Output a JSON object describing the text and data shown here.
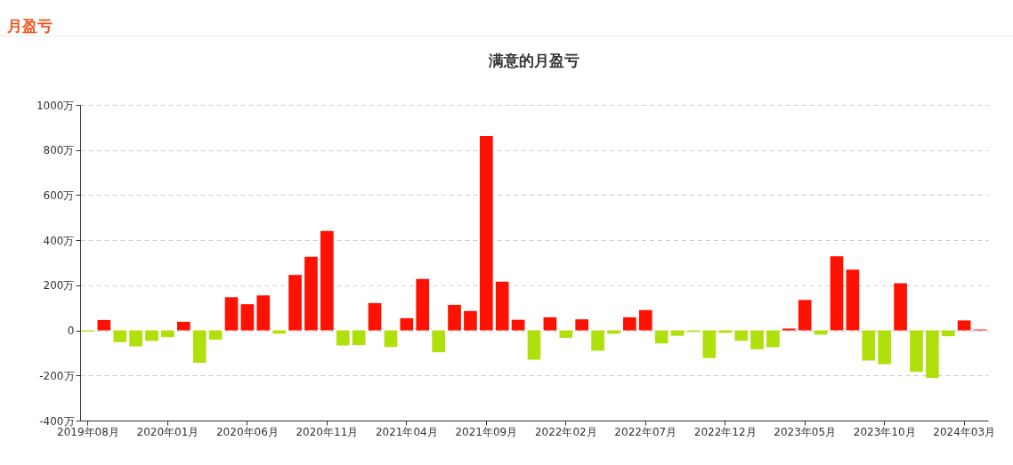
{
  "chart_data": {
    "type": "bar",
    "title": "满意的月盈亏",
    "annotations": [
      "月盈亏"
    ],
    "categories": [
      "2019年08月",
      null,
      null,
      null,
      null,
      "2020年01月",
      null,
      null,
      null,
      null,
      "2020年06月",
      null,
      null,
      null,
      null,
      "2020年11月",
      null,
      null,
      null,
      null,
      "2021年04月",
      null,
      null,
      null,
      null,
      "2021年09月",
      null,
      null,
      null,
      null,
      "2022年02月",
      null,
      null,
      null,
      null,
      "2022年07月",
      null,
      null,
      null,
      null,
      "2022年12月",
      null,
      null,
      null,
      null,
      "2023年05月",
      null,
      null,
      null,
      null,
      "2023年10月",
      null,
      null,
      null,
      null,
      "2024年03月",
      null
    ],
    "values": [
      -5,
      46,
      -52,
      -71,
      -47,
      -30,
      38,
      -144,
      -41,
      147,
      116,
      155,
      -15,
      246,
      327,
      441,
      -67,
      -65,
      121,
      -74,
      54,
      228,
      -97,
      113,
      86,
      862,
      216,
      47,
      -130,
      58,
      -33,
      49,
      -90,
      -15,
      58,
      90,
      -58,
      -24,
      -7,
      -123,
      -11,
      -46,
      -84,
      -75,
      8,
      135,
      -19,
      329,
      269,
      -134,
      -150,
      209,
      -184,
      -211,
      -26,
      44,
      4
    ],
    "colors": [
      "#b0e00b",
      "#ff1100",
      "#b0e00b",
      "#b0e00b",
      "#b0e00b",
      "#b0e00b",
      "#ff1100",
      "#b0e00b",
      "#b0e00b",
      "#ff1100",
      "#ff1100",
      "#ff1100",
      "#b0e00b",
      "#ff1100",
      "#ff1100",
      "#ff1100",
      "#b0e00b",
      "#b0e00b",
      "#ff1100",
      "#b0e00b",
      "#ff1100",
      "#ff1100",
      "#b0e00b",
      "#ff1100",
      "#ff1100",
      "#ff1100",
      "#ff1100",
      "#ff1100",
      "#b0e00b",
      "#ff1100",
      "#b0e00b",
      "#ff1100",
      "#b0e00b",
      "#b0e00b",
      "#ff1100",
      "#ff1100",
      "#b0e00b",
      "#b0e00b",
      "#b0e00b",
      "#b0e00b",
      "#b0e00b",
      "#b0e00b",
      "#b0e00b",
      "#b0e00b",
      "#ff1100",
      "#ff1100",
      "#b0e00b",
      "#ff1100",
      "#ff1100",
      "#b0e00b",
      "#b0e00b",
      "#ff1100",
      "#b0e00b",
      "#b0e00b",
      "#b0e00b",
      "#ff1100",
      "#ff1100"
    ],
    "ylim": [
      -400,
      1000
    ],
    "yticks": [
      {
        "value": -400,
        "label": "-400万"
      },
      {
        "value": -200,
        "label": "-200万"
      },
      {
        "value": 0,
        "label": "0"
      },
      {
        "value": 200,
        "label": "200万"
      },
      {
        "value": 400,
        "label": "400万"
      },
      {
        "value": 600,
        "label": "600万"
      },
      {
        "value": 800,
        "label": "800万"
      },
      {
        "value": 1000,
        "label": "1000万"
      }
    ],
    "grid": "y"
  }
}
